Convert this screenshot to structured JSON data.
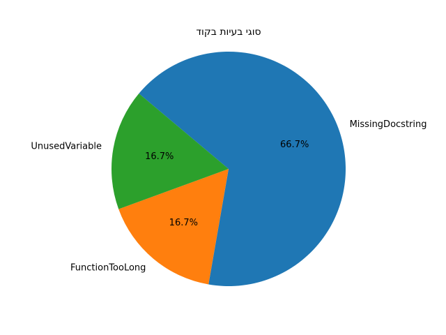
{
  "chart_data": {
    "type": "pie",
    "title": "סוגי בעיות בקוד",
    "slices": [
      {
        "label": "MissingDocstring",
        "value": 66.7,
        "pct_label": "66.7%",
        "color": "#1f77b4"
      },
      {
        "label": "FunctionTooLong",
        "value": 16.7,
        "pct_label": "16.7%",
        "color": "#ff7f0e"
      },
      {
        "label": "UnusedVariable",
        "value": 16.7,
        "pct_label": "16.7%",
        "color": "#2ca02c"
      }
    ]
  }
}
